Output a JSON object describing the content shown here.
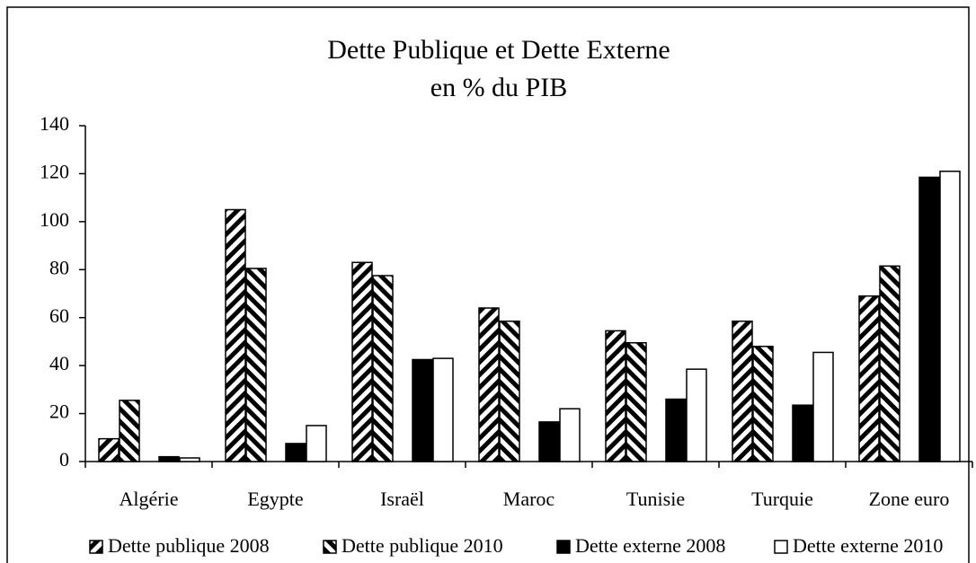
{
  "chart_data": {
    "type": "bar",
    "title": "Dette Publique et Dette Externe",
    "subtitle": "en % du PIB",
    "categories": [
      "Algérie",
      "Egypte",
      "Israël",
      "Maroc",
      "Tunisie",
      "Turquie",
      "Zone euro"
    ],
    "series": [
      {
        "name": "Dette publique 2008",
        "color": "#000000",
        "pattern": "hatch-right",
        "values": [
          9.5,
          105,
          83,
          64,
          54.5,
          58.5,
          69
        ]
      },
      {
        "name": "Dette publique 2010",
        "color": "#000000",
        "pattern": "hatch-left",
        "values": [
          25.5,
          80.5,
          77.5,
          58.5,
          49.5,
          48,
          81.5
        ]
      },
      {
        "name": "Dette externe 2008",
        "color": "#000000",
        "pattern": "solid",
        "values": [
          2,
          7.5,
          42.5,
          16.5,
          26,
          23.5,
          118.5
        ]
      },
      {
        "name": "Dette externe 2010",
        "color": "#ffffff",
        "pattern": "solid",
        "values": [
          1.5,
          15,
          43,
          22,
          38.5,
          45.5,
          121
        ]
      }
    ],
    "ylim": [
      0,
      140
    ],
    "yticks": [
      0,
      20,
      40,
      60,
      80,
      100,
      120,
      140
    ],
    "grid": false,
    "legend": "bottom"
  }
}
